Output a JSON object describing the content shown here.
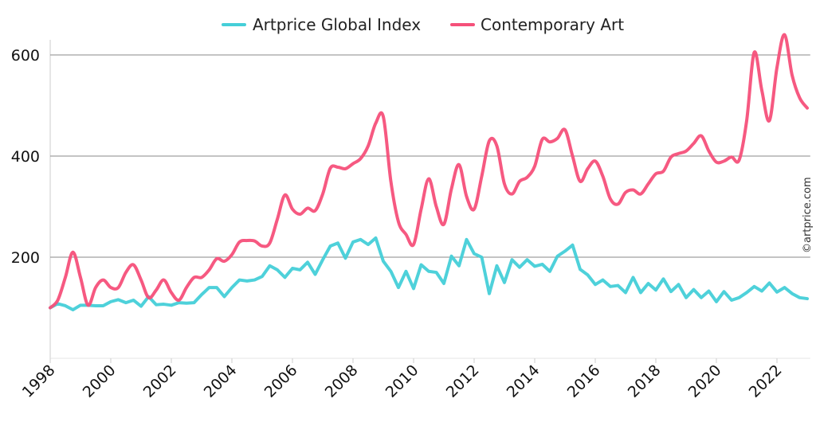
{
  "chart_data": {
    "type": "line",
    "title": "",
    "xlabel": "",
    "ylabel": "",
    "xlim": [
      1998,
      2023.1
    ],
    "ylim": [
      0,
      630
    ],
    "x_ticks": [
      "1998",
      "2000",
      "2002",
      "2004",
      "2006",
      "2008",
      "2010",
      "2012",
      "2014",
      "2016",
      "2018",
      "2020",
      "2022"
    ],
    "y_ticks": [
      "200",
      "400",
      "600"
    ],
    "grid": "horizontal",
    "legend_placement": "top",
    "watermark": "©artprice.com",
    "series": [
      {
        "name": "Artprice Global Index",
        "color": "#45CFD8",
        "smooth": false,
        "points": [
          [
            1998.0,
            100
          ],
          [
            1998.25,
            108
          ],
          [
            1998.5,
            104
          ],
          [
            1998.75,
            96
          ],
          [
            1999.0,
            105
          ],
          [
            1999.25,
            105
          ],
          [
            1999.5,
            104
          ],
          [
            1999.75,
            104
          ],
          [
            2000.0,
            112
          ],
          [
            2000.25,
            116
          ],
          [
            2000.5,
            110
          ],
          [
            2000.75,
            115
          ],
          [
            2001.0,
            103
          ],
          [
            2001.25,
            122
          ],
          [
            2001.5,
            106
          ],
          [
            2001.75,
            107
          ],
          [
            2002.0,
            105
          ],
          [
            2002.25,
            110
          ],
          [
            2002.5,
            109
          ],
          [
            2002.75,
            110
          ],
          [
            2003.0,
            126
          ],
          [
            2003.25,
            140
          ],
          [
            2003.5,
            140
          ],
          [
            2003.75,
            122
          ],
          [
            2004.0,
            140
          ],
          [
            2004.25,
            155
          ],
          [
            2004.5,
            153
          ],
          [
            2004.75,
            155
          ],
          [
            2005.0,
            162
          ],
          [
            2005.25,
            183
          ],
          [
            2005.5,
            175
          ],
          [
            2005.75,
            160
          ],
          [
            2006.0,
            178
          ],
          [
            2006.25,
            175
          ],
          [
            2006.5,
            190
          ],
          [
            2006.75,
            166
          ],
          [
            2007.0,
            195
          ],
          [
            2007.25,
            222
          ],
          [
            2007.5,
            228
          ],
          [
            2007.75,
            198
          ],
          [
            2008.0,
            230
          ],
          [
            2008.25,
            235
          ],
          [
            2008.5,
            225
          ],
          [
            2008.75,
            238
          ],
          [
            2009.0,
            192
          ],
          [
            2009.25,
            172
          ],
          [
            2009.5,
            140
          ],
          [
            2009.75,
            172
          ],
          [
            2010.0,
            138
          ],
          [
            2010.25,
            185
          ],
          [
            2010.5,
            172
          ],
          [
            2010.75,
            170
          ],
          [
            2011.0,
            148
          ],
          [
            2011.25,
            202
          ],
          [
            2011.5,
            183
          ],
          [
            2011.75,
            235
          ],
          [
            2012.0,
            207
          ],
          [
            2012.25,
            200
          ],
          [
            2012.5,
            128
          ],
          [
            2012.75,
            183
          ],
          [
            2013.0,
            150
          ],
          [
            2013.25,
            195
          ],
          [
            2013.5,
            180
          ],
          [
            2013.75,
            195
          ],
          [
            2014.0,
            182
          ],
          [
            2014.25,
            186
          ],
          [
            2014.5,
            172
          ],
          [
            2014.75,
            202
          ],
          [
            2015.0,
            212
          ],
          [
            2015.25,
            224
          ],
          [
            2015.5,
            176
          ],
          [
            2015.75,
            165
          ],
          [
            2016.0,
            146
          ],
          [
            2016.25,
            155
          ],
          [
            2016.5,
            142
          ],
          [
            2016.75,
            144
          ],
          [
            2017.0,
            130
          ],
          [
            2017.25,
            160
          ],
          [
            2017.5,
            130
          ],
          [
            2017.75,
            148
          ],
          [
            2018.0,
            135
          ],
          [
            2018.25,
            157
          ],
          [
            2018.5,
            132
          ],
          [
            2018.75,
            146
          ],
          [
            2019.0,
            120
          ],
          [
            2019.25,
            136
          ],
          [
            2019.5,
            120
          ],
          [
            2019.75,
            133
          ],
          [
            2020.0,
            112
          ],
          [
            2020.25,
            132
          ],
          [
            2020.5,
            115
          ],
          [
            2020.75,
            120
          ],
          [
            2021.0,
            130
          ],
          [
            2021.25,
            142
          ],
          [
            2021.5,
            133
          ],
          [
            2021.75,
            149
          ],
          [
            2022.0,
            131
          ],
          [
            2022.25,
            140
          ],
          [
            2022.5,
            128
          ],
          [
            2022.75,
            120
          ],
          [
            2023.0,
            118
          ]
        ]
      },
      {
        "name": "Contemporary Art",
        "color": "#F5507A",
        "smooth": true,
        "points": [
          [
            1998.0,
            100
          ],
          [
            1998.25,
            115
          ],
          [
            1998.5,
            160
          ],
          [
            1998.75,
            210
          ],
          [
            1999.0,
            160
          ],
          [
            1999.25,
            105
          ],
          [
            1999.5,
            140
          ],
          [
            1999.75,
            155
          ],
          [
            2000.0,
            140
          ],
          [
            2000.25,
            140
          ],
          [
            2000.5,
            170
          ],
          [
            2000.75,
            185
          ],
          [
            2001.0,
            155
          ],
          [
            2001.25,
            120
          ],
          [
            2001.5,
            135
          ],
          [
            2001.75,
            155
          ],
          [
            2002.0,
            130
          ],
          [
            2002.25,
            115
          ],
          [
            2002.5,
            140
          ],
          [
            2002.75,
            160
          ],
          [
            2003.0,
            160
          ],
          [
            2003.25,
            175
          ],
          [
            2003.5,
            197
          ],
          [
            2003.75,
            192
          ],
          [
            2004.0,
            205
          ],
          [
            2004.25,
            230
          ],
          [
            2004.5,
            233
          ],
          [
            2004.75,
            232
          ],
          [
            2005.0,
            222
          ],
          [
            2005.25,
            228
          ],
          [
            2005.5,
            275
          ],
          [
            2005.75,
            323
          ],
          [
            2006.0,
            295
          ],
          [
            2006.25,
            285
          ],
          [
            2006.5,
            297
          ],
          [
            2006.75,
            292
          ],
          [
            2007.0,
            325
          ],
          [
            2007.25,
            376
          ],
          [
            2007.5,
            378
          ],
          [
            2007.75,
            375
          ],
          [
            2008.0,
            385
          ],
          [
            2008.25,
            395
          ],
          [
            2008.5,
            420
          ],
          [
            2008.75,
            465
          ],
          [
            2009.0,
            478
          ],
          [
            2009.25,
            350
          ],
          [
            2009.5,
            270
          ],
          [
            2009.75,
            245
          ],
          [
            2010.0,
            225
          ],
          [
            2010.25,
            295
          ],
          [
            2010.5,
            355
          ],
          [
            2010.75,
            300
          ],
          [
            2011.0,
            265
          ],
          [
            2011.25,
            335
          ],
          [
            2011.5,
            383
          ],
          [
            2011.75,
            320
          ],
          [
            2012.0,
            295
          ],
          [
            2012.25,
            360
          ],
          [
            2012.5,
            430
          ],
          [
            2012.75,
            420
          ],
          [
            2013.0,
            345
          ],
          [
            2013.25,
            325
          ],
          [
            2013.5,
            350
          ],
          [
            2013.75,
            358
          ],
          [
            2014.0,
            380
          ],
          [
            2014.25,
            433
          ],
          [
            2014.5,
            428
          ],
          [
            2014.75,
            435
          ],
          [
            2015.0,
            452
          ],
          [
            2015.25,
            400
          ],
          [
            2015.5,
            350
          ],
          [
            2015.75,
            375
          ],
          [
            2016.0,
            390
          ],
          [
            2016.25,
            360
          ],
          [
            2016.5,
            315
          ],
          [
            2016.75,
            305
          ],
          [
            2017.0,
            328
          ],
          [
            2017.25,
            333
          ],
          [
            2017.5,
            325
          ],
          [
            2017.75,
            345
          ],
          [
            2018.0,
            365
          ],
          [
            2018.25,
            370
          ],
          [
            2018.5,
            398
          ],
          [
            2018.75,
            405
          ],
          [
            2019.0,
            410
          ],
          [
            2019.25,
            425
          ],
          [
            2019.5,
            440
          ],
          [
            2019.75,
            410
          ],
          [
            2020.0,
            388
          ],
          [
            2020.25,
            390
          ],
          [
            2020.5,
            398
          ],
          [
            2020.75,
            392
          ],
          [
            2021.0,
            470
          ],
          [
            2021.25,
            605
          ],
          [
            2021.5,
            530
          ],
          [
            2021.75,
            470
          ],
          [
            2022.0,
            575
          ],
          [
            2022.25,
            640
          ],
          [
            2022.5,
            560
          ],
          [
            2022.75,
            515
          ],
          [
            2023.0,
            495
          ]
        ]
      }
    ]
  }
}
